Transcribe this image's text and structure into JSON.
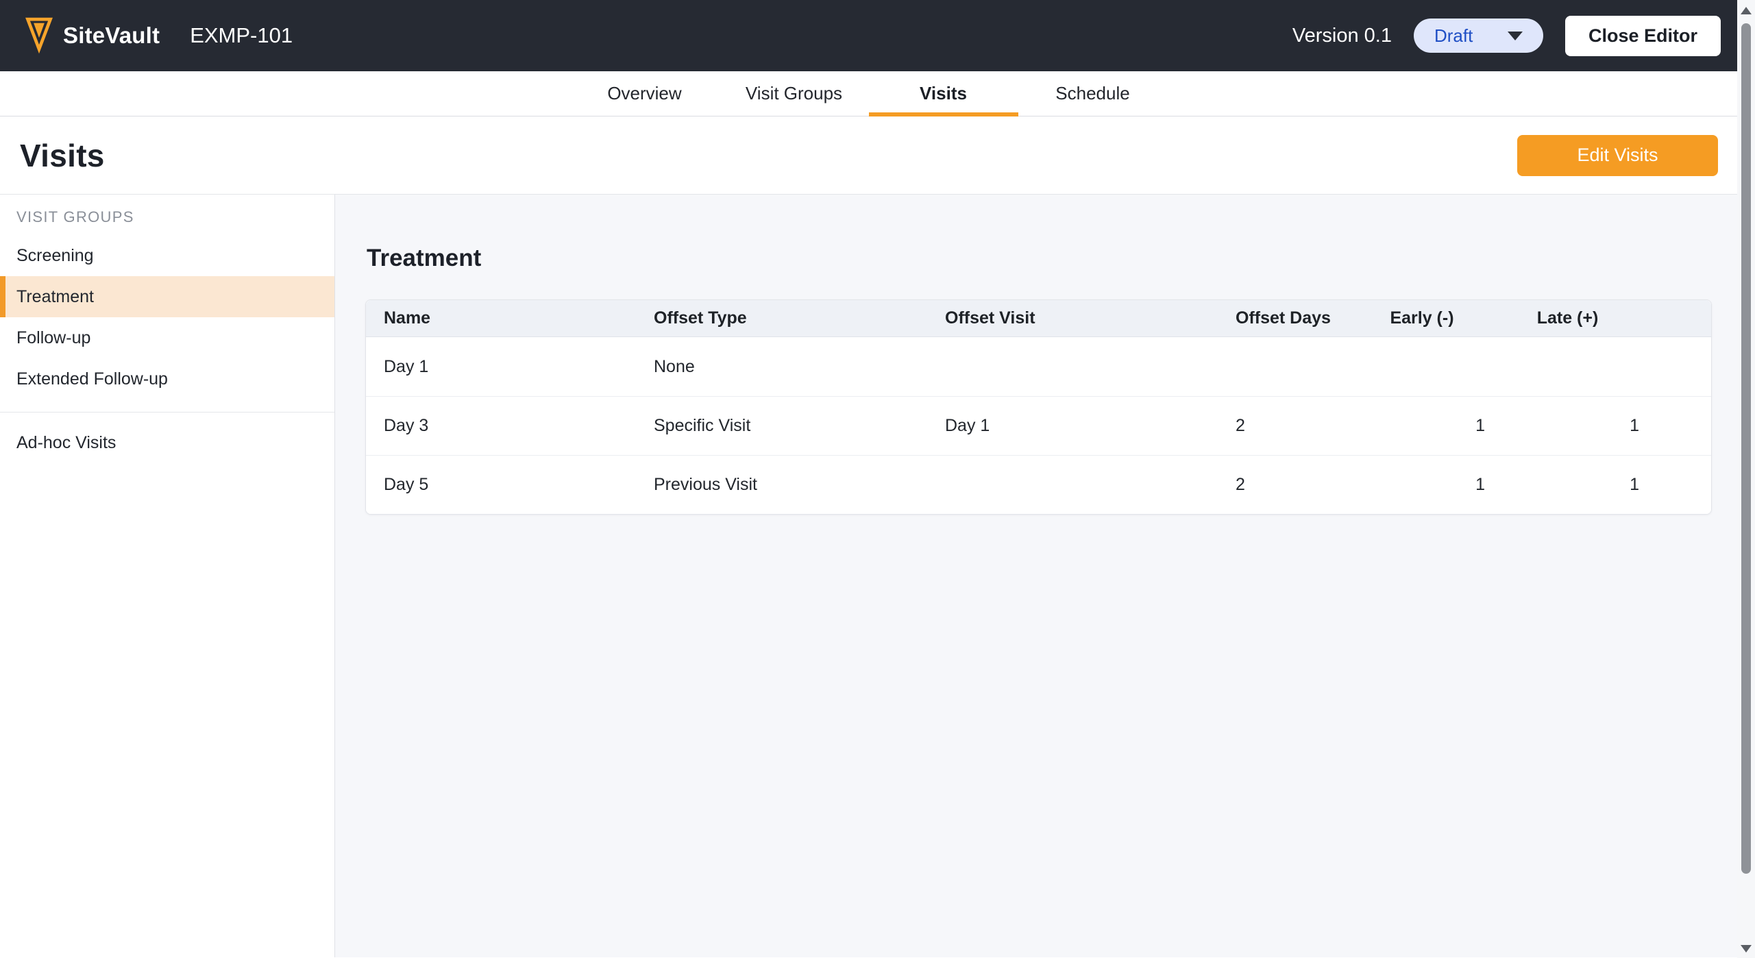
{
  "header": {
    "brand": "SiteVault",
    "study_id": "EXMP-101",
    "version_label": "Version 0.1",
    "status": "Draft",
    "close_button": "Close Editor"
  },
  "tabs": [
    {
      "label": "Overview",
      "active": false
    },
    {
      "label": "Visit Groups",
      "active": false
    },
    {
      "label": "Visits",
      "active": true
    },
    {
      "label": "Schedule",
      "active": false
    }
  ],
  "page": {
    "title": "Visits",
    "edit_button": "Edit Visits"
  },
  "sidebar": {
    "section_label": "VISIT GROUPS",
    "groups": [
      "Screening",
      "Treatment",
      "Follow-up",
      "Extended Follow-up"
    ],
    "selected": "Treatment",
    "adhoc_label": "Ad-hoc Visits"
  },
  "content": {
    "section_title": "Treatment",
    "table": {
      "columns": [
        "Name",
        "Offset Type",
        "Offset Visit",
        "Offset Days",
        "Early (-)",
        "Late (+)"
      ],
      "rows": [
        [
          "Day 1",
          "None",
          "",
          "",
          "",
          ""
        ],
        [
          "Day 3",
          "Specific Visit",
          "Day 1",
          "2",
          "1",
          "1"
        ],
        [
          "Day 5",
          "Previous Visit",
          "",
          "2",
          "1",
          "1"
        ]
      ]
    }
  },
  "colors": {
    "accent_orange": "#F59C23",
    "topbar_bg": "#262A33",
    "status_pill_bg": "#DFE6FB",
    "status_pill_text": "#1F4FC5",
    "selected_item_bg": "#FBE7D2",
    "content_bg": "#F6F7FA",
    "table_header_bg": "#EEF1F6"
  }
}
